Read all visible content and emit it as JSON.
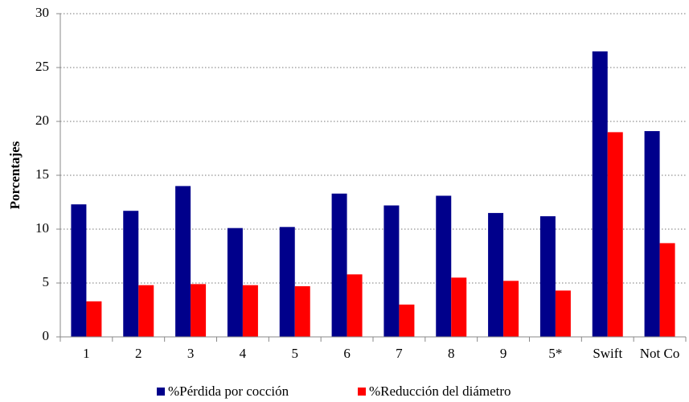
{
  "chart_data": {
    "type": "bar",
    "y_label": "Porcentajes",
    "categories": [
      "1",
      "2",
      "3",
      "4",
      "5",
      "6",
      "7",
      "8",
      "9",
      "5*",
      "Swift",
      "Not Co"
    ],
    "series": [
      {
        "name": "%Pérdida por cocción",
        "color": "#00008b",
        "values": [
          12.3,
          11.7,
          14.0,
          10.1,
          10.2,
          13.3,
          12.2,
          13.1,
          11.5,
          11.2,
          26.5,
          19.1
        ]
      },
      {
        "name": "%Reducción del diámetro",
        "color": "#ff0000",
        "values": [
          3.3,
          4.8,
          4.9,
          4.8,
          4.7,
          5.8,
          3.0,
          5.5,
          5.2,
          4.3,
          19.0,
          8.7
        ]
      }
    ],
    "ylim": [
      0,
      30
    ],
    "yticks": [
      0,
      5,
      10,
      15,
      20,
      25,
      30
    ],
    "grid": true,
    "legend": "bottom"
  }
}
